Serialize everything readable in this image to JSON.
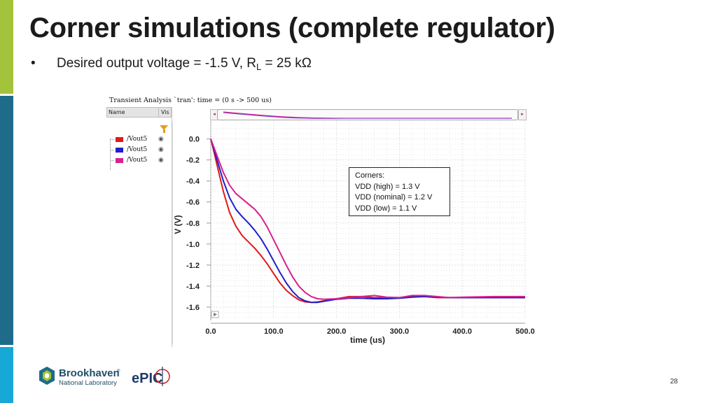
{
  "slide": {
    "title": "Corner simulations (complete regulator)",
    "bullet_prefix": "Desired output voltage = -1.5 V, R",
    "bullet_subscript": "L",
    "bullet_suffix": " = 25 kΩ",
    "page_number": "28"
  },
  "colors": {
    "accent_green": "#a3c43a",
    "accent_teal": "#1f6b8a",
    "accent_blue": "#17a8d8",
    "series_red": "#e01919",
    "series_blue": "#1f1fcc",
    "series_magenta": "#d8208c"
  },
  "simulator": {
    "title": "Transient Analysis `tran': time = (0 s -> 500 us)",
    "column_name": "Name",
    "column_vis": "Vis",
    "filter_icon": "funnel-icon",
    "eye_icon": "eye-icon",
    "scroll_left": "◂",
    "scroll_right": "▸"
  },
  "annotation": {
    "heading": "Corners:",
    "lines": [
      "VDD (high) = 1.3 V",
      "VDD (nominal) = 1.2 V",
      "VDD (low) = 1.1 V"
    ]
  },
  "logos": {
    "lab_name_line1": "Brookhaven",
    "lab_name_line2": "National Laboratory",
    "tm": "®",
    "experiment": "ePIC"
  },
  "chart_data": {
    "type": "line",
    "title": "",
    "xlabel": "time (us)",
    "ylabel": "V (V)",
    "xlim": [
      0,
      500
    ],
    "ylim": [
      -1.7,
      0.15
    ],
    "xticks": [
      "0.0",
      "100.0",
      "200.0",
      "300.0",
      "400.0",
      "500.0"
    ],
    "yticks": [
      "0.0",
      "-0.2",
      "-0.4",
      "-0.6",
      "-0.8",
      "-1.0",
      "-1.2",
      "-1.4",
      "-1.6"
    ],
    "grid": true,
    "legend_position": "left panel",
    "series": [
      {
        "name": "/Vout5",
        "color": "#e01919",
        "x": [
          0,
          5,
          10,
          20,
          30,
          40,
          50,
          60,
          70,
          80,
          90,
          100,
          110,
          120,
          130,
          140,
          150,
          160,
          170,
          180,
          200,
          220,
          240,
          260,
          280,
          300,
          320,
          340,
          360,
          380,
          400,
          450,
          500
        ],
        "y": [
          0.0,
          -0.12,
          -0.25,
          -0.5,
          -0.7,
          -0.83,
          -0.92,
          -0.98,
          -1.04,
          -1.11,
          -1.19,
          -1.28,
          -1.37,
          -1.44,
          -1.49,
          -1.53,
          -1.55,
          -1.555,
          -1.55,
          -1.54,
          -1.52,
          -1.5,
          -1.5,
          -1.51,
          -1.51,
          -1.51,
          -1.5,
          -1.5,
          -1.51,
          -1.51,
          -1.51,
          -1.51,
          -1.51
        ]
      },
      {
        "name": "/Vout5",
        "color": "#1f1fcc",
        "x": [
          0,
          5,
          10,
          20,
          30,
          40,
          50,
          60,
          70,
          80,
          90,
          100,
          110,
          120,
          130,
          140,
          150,
          160,
          170,
          180,
          200,
          220,
          240,
          260,
          280,
          300,
          320,
          340,
          360,
          380,
          400,
          450,
          500
        ],
        "y": [
          0.0,
          -0.1,
          -0.2,
          -0.4,
          -0.56,
          -0.67,
          -0.74,
          -0.8,
          -0.87,
          -0.95,
          -1.05,
          -1.16,
          -1.27,
          -1.37,
          -1.45,
          -1.51,
          -1.54,
          -1.555,
          -1.555,
          -1.545,
          -1.525,
          -1.515,
          -1.515,
          -1.52,
          -1.52,
          -1.515,
          -1.505,
          -1.5,
          -1.505,
          -1.51,
          -1.51,
          -1.51,
          -1.51
        ]
      },
      {
        "name": "/Vout5",
        "color": "#d8208c",
        "x": [
          0,
          5,
          10,
          20,
          30,
          40,
          50,
          60,
          70,
          80,
          90,
          100,
          110,
          120,
          130,
          140,
          150,
          160,
          170,
          180,
          200,
          220,
          240,
          260,
          280,
          300,
          320,
          340,
          360,
          380,
          400,
          450,
          500
        ],
        "y": [
          0.0,
          -0.08,
          -0.16,
          -0.32,
          -0.44,
          -0.52,
          -0.57,
          -0.62,
          -0.67,
          -0.74,
          -0.84,
          -0.96,
          -1.08,
          -1.2,
          -1.31,
          -1.4,
          -1.46,
          -1.5,
          -1.52,
          -1.525,
          -1.52,
          -1.51,
          -1.5,
          -1.49,
          -1.505,
          -1.51,
          -1.49,
          -1.49,
          -1.5,
          -1.51,
          -1.505,
          -1.5,
          -1.5
        ]
      }
    ]
  }
}
